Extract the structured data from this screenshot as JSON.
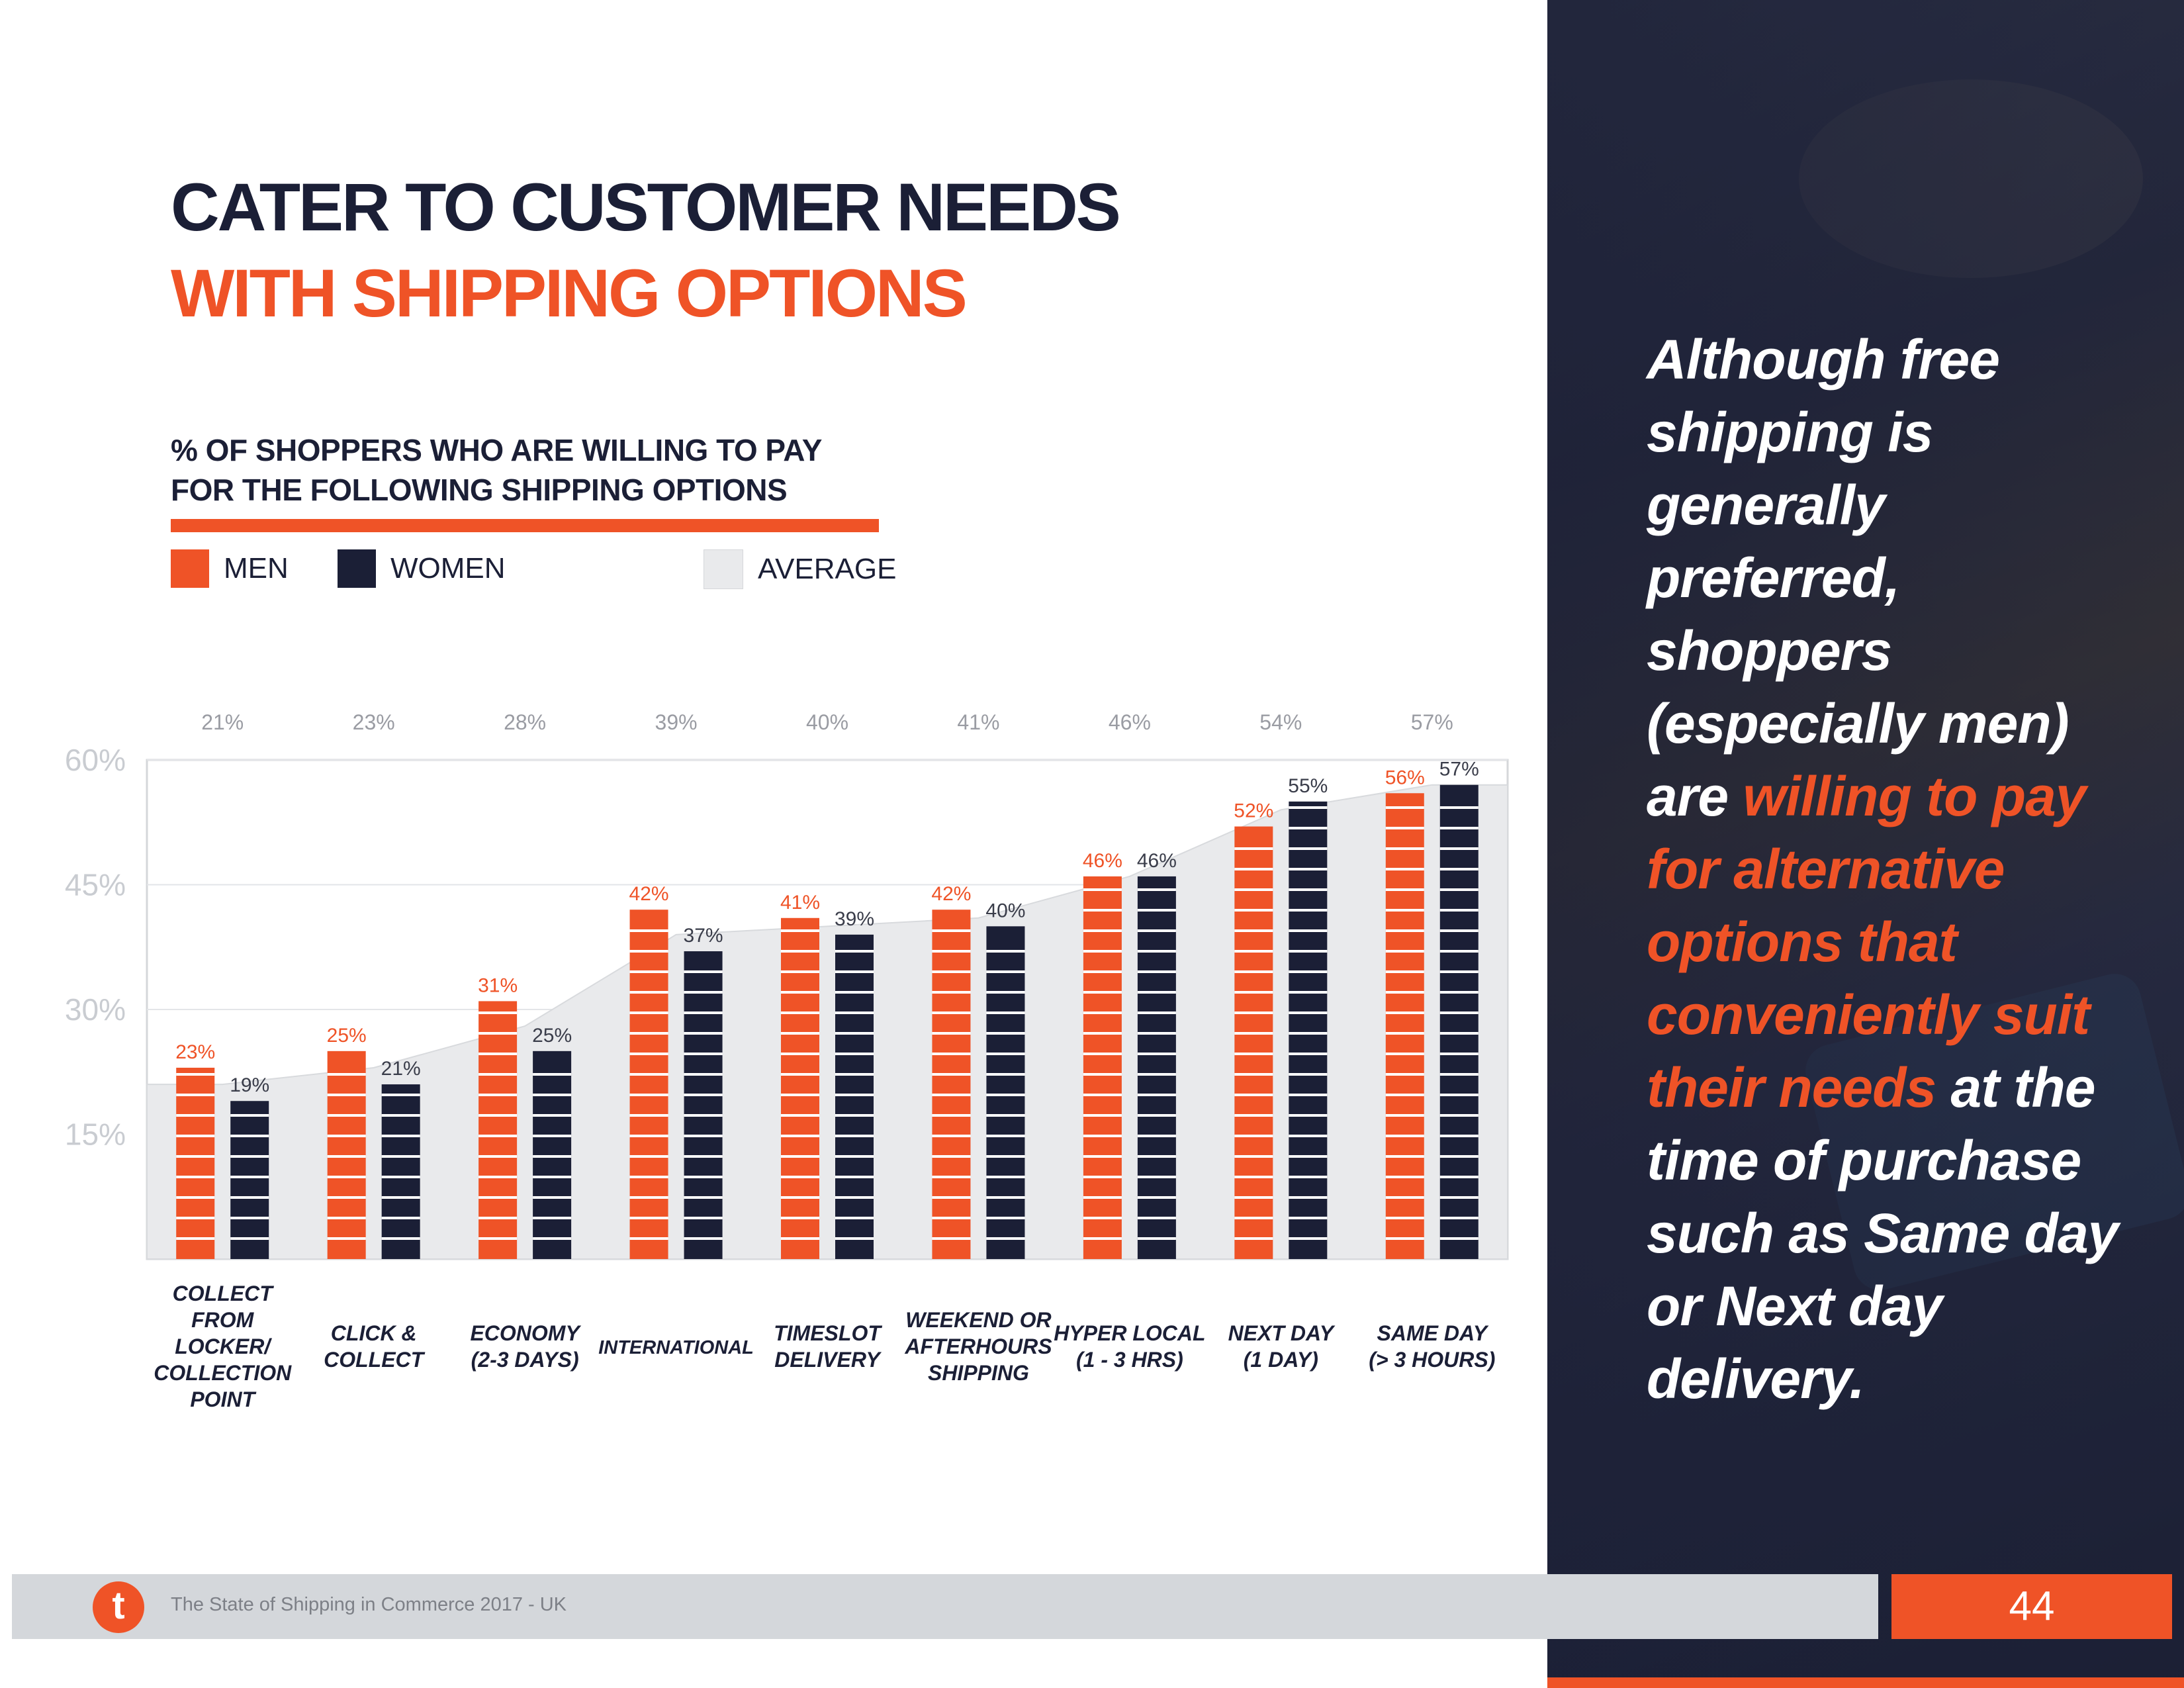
{
  "heading": {
    "line1": "CATER TO CUSTOMER NEEDS",
    "line2": "WITH SHIPPING OPTIONS"
  },
  "subtitle": {
    "line1": "% OF SHOPPERS WHO ARE WILLING TO PAY",
    "line2": "FOR THE FOLLOWING SHIPPING OPTIONS"
  },
  "legend": {
    "men": "MEN",
    "women": "WOMEN",
    "average": "AVERAGE"
  },
  "colors": {
    "accent": "#ef5327",
    "navy": "#1b1f36",
    "average": "#e9eaec",
    "axis_text": "#c9ccd1",
    "label_gray": "#9a9ca3"
  },
  "chart_data": {
    "type": "bar",
    "title": "% OF SHOPPERS WHO ARE WILLING TO PAY FOR THE FOLLOWING SHIPPING OPTIONS",
    "categories": [
      [
        "COLLECT",
        "FROM",
        "LOCKER/",
        "COLLECTION",
        "POINT"
      ],
      [
        "CLICK &",
        "COLLECT"
      ],
      [
        "ECONOMY",
        "(2-3 DAYS)"
      ],
      [
        "INTERNATIONAL"
      ],
      [
        "TIMESLOT",
        "DELIVERY"
      ],
      [
        "WEEKEND OR",
        "AFTERHOURS",
        "SHIPPING"
      ],
      [
        "HYPER LOCAL",
        "(1 - 3 HRS)"
      ],
      [
        "NEXT DAY",
        "(1 DAY)"
      ],
      [
        "SAME DAY",
        "(> 3 HOURS)"
      ]
    ],
    "series": [
      {
        "name": "MEN",
        "values": [
          23,
          25,
          31,
          42,
          41,
          42,
          46,
          52,
          56
        ]
      },
      {
        "name": "WOMEN",
        "values": [
          19,
          21,
          25,
          37,
          39,
          40,
          46,
          55,
          57
        ]
      },
      {
        "name": "AVERAGE",
        "type": "area",
        "values": [
          21,
          23,
          28,
          39,
          40,
          41,
          46,
          54,
          57
        ]
      }
    ],
    "y_ticks": [
      "60%",
      "45%",
      "30%",
      "15%"
    ],
    "y_tick_values": [
      60,
      45,
      30,
      15
    ],
    "ylim": [
      0,
      60
    ],
    "xlabel": "",
    "ylabel": ""
  },
  "panel": {
    "quote_before": "Although free shipping is generally preferred, shoppers (especially men) are ",
    "quote_highlight": "willing to pay for alternative options that conveniently suit their needs",
    "quote_after": " at the time of purchase such as Same day or Next day delivery."
  },
  "footer": {
    "logo_letter": "t",
    "text": "The State of Shipping in Commerce 2017 - UK",
    "page_number": "44"
  }
}
